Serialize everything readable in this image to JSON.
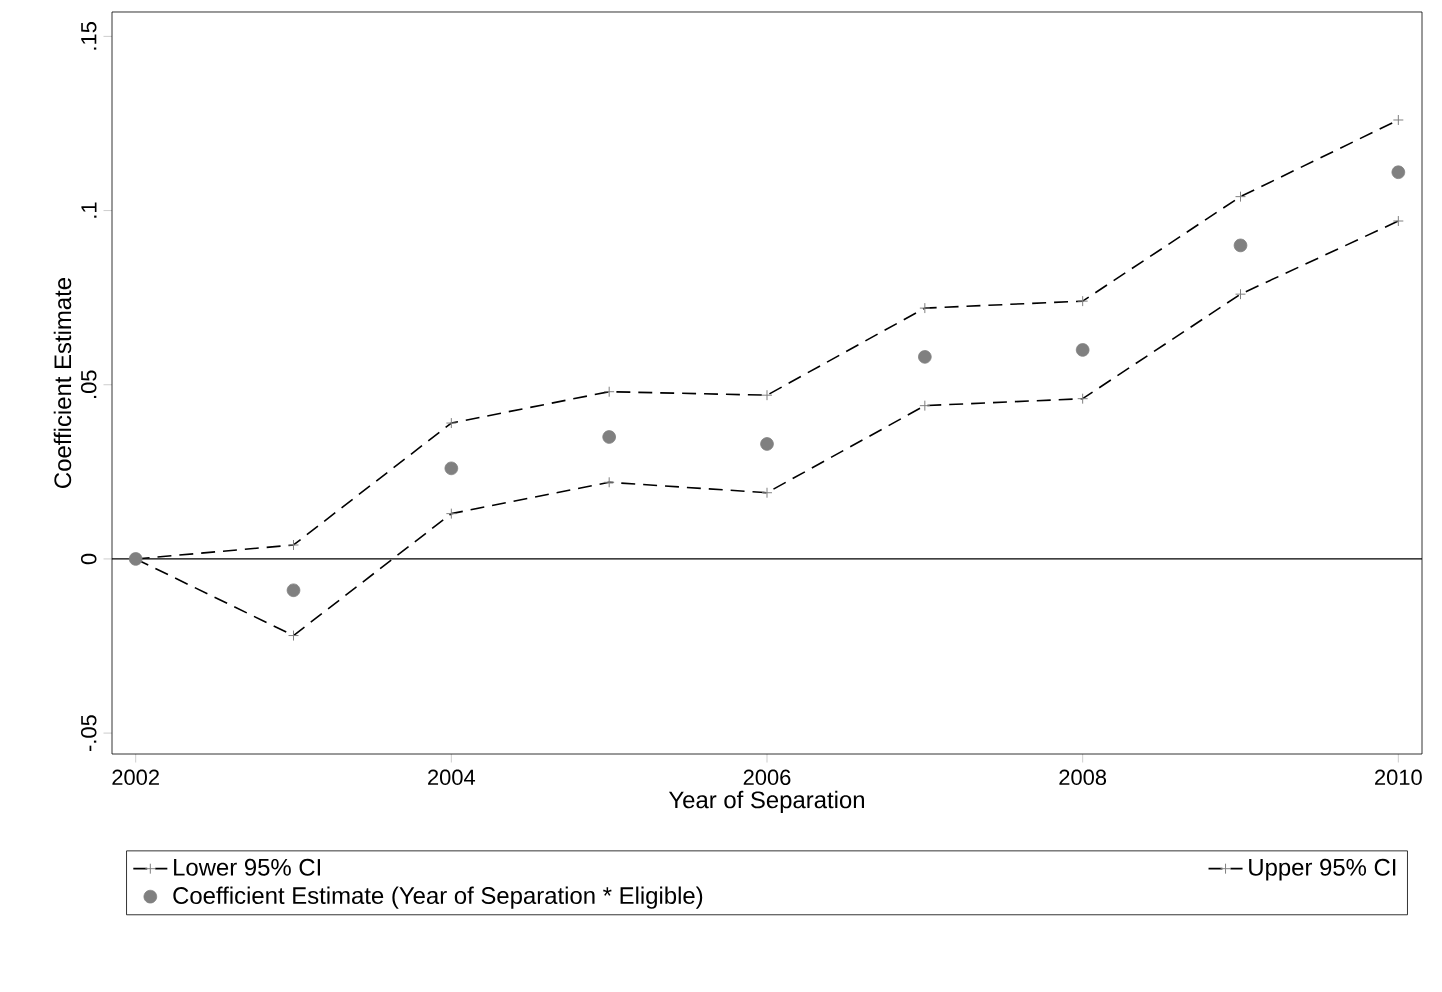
{
  "chart_data": {
    "type": "line",
    "xlabel": "Year of Separation",
    "ylabel": "Coefficient Estimate",
    "x": [
      2002,
      2003,
      2004,
      2005,
      2006,
      2007,
      2008,
      2009,
      2010
    ],
    "series": [
      {
        "name": "Lower 95% CI",
        "color": "#000000",
        "line_style": "dashed",
        "marker": "cross",
        "values": [
          0,
          -0.022,
          0.013,
          0.022,
          0.019,
          0.044,
          0.046,
          0.076,
          0.097
        ]
      },
      {
        "name": "Upper 95% CI",
        "color": "#000000",
        "line_style": "dashed",
        "marker": "cross",
        "values": [
          0,
          0.004,
          0.039,
          0.048,
          0.047,
          0.072,
          0.074,
          0.104,
          0.126
        ]
      },
      {
        "name": "Coefficient Estimate (Year of Separation * Eligible)",
        "type": "scatter",
        "color": "#808080",
        "marker": "circle",
        "values": [
          0,
          -0.009,
          0.026,
          0.035,
          0.033,
          0.058,
          0.06,
          0.09,
          0.111
        ]
      }
    ],
    "xlim": [
      2001.85,
      2010.15
    ],
    "ylim": [
      -0.056,
      0.157
    ],
    "xticks": [
      2002,
      2004,
      2006,
      2008,
      2010
    ],
    "yticks": [
      {
        "value": -0.05,
        "label": "-.05"
      },
      {
        "value": 0,
        "label": "0"
      },
      {
        "value": 0.05,
        "label": ".05"
      },
      {
        "value": 0.1,
        "label": ".1"
      },
      {
        "value": 0.15,
        "label": ".15"
      }
    ],
    "ref_lines": [
      {
        "axis": "y",
        "value": 0,
        "color": "#000000",
        "line_style": "solid"
      }
    ],
    "legend": "bottom"
  }
}
